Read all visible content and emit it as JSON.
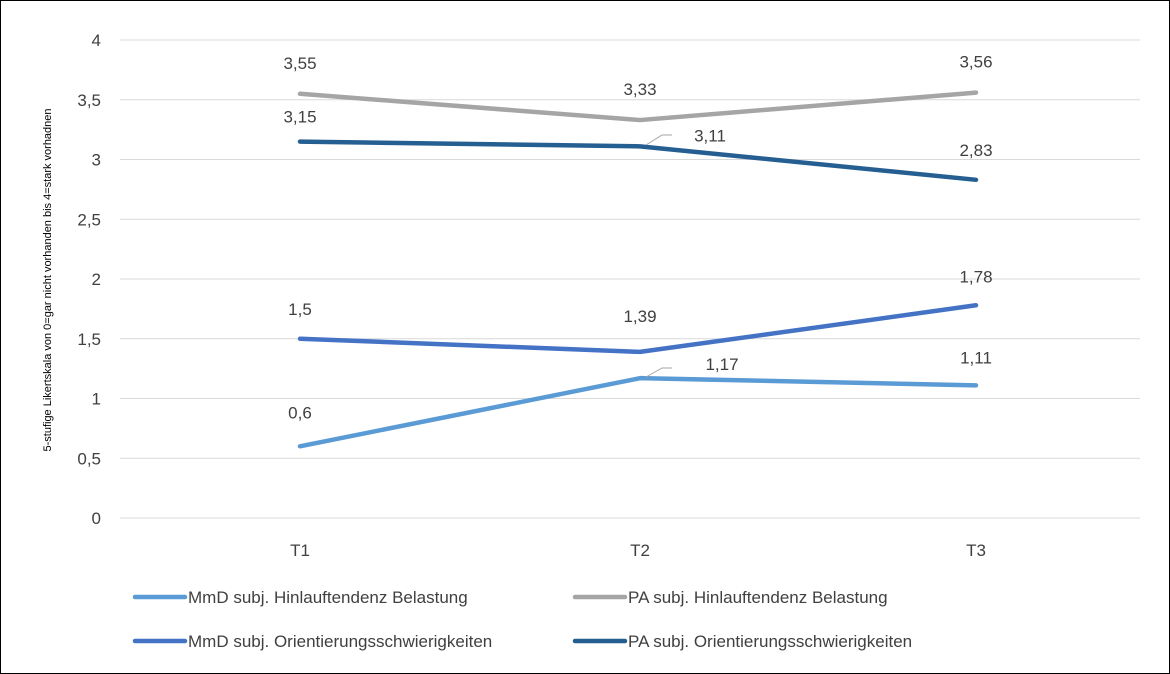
{
  "chart_data": {
    "type": "line",
    "title": "",
    "xlabel": "",
    "ylabel": "5-stufige Likertskala von 0=gar nicht vorhanden bis 4=stark vorhadnen",
    "categories": [
      "T1",
      "T2",
      "T3"
    ],
    "ylim": [
      0,
      4
    ],
    "yticks": [
      "0",
      "0,5",
      "1",
      "1,5",
      "2",
      "2,5",
      "3",
      "3,5",
      "4"
    ],
    "grid": true,
    "legend_position": "bottom",
    "series": [
      {
        "name": "MmD subj. Hinlauftendenz Belastung",
        "values": [
          0.6,
          1.17,
          1.11
        ],
        "labels": [
          "0,6",
          "1,17",
          "1,11"
        ],
        "color": "#5B9BD5"
      },
      {
        "name": "PA subj. Hinlauftendenz Belastung",
        "values": [
          3.55,
          3.33,
          3.56
        ],
        "labels": [
          "3,55",
          "3,33",
          "3,56"
        ],
        "color": "#A5A5A5"
      },
      {
        "name": "MmD subj. Orientierungsschwierigkeiten",
        "values": [
          1.5,
          1.39,
          1.78
        ],
        "labels": [
          "1,5",
          "1,39",
          "1,78"
        ],
        "color": "#4472C4"
      },
      {
        "name": "PA subj. Orientierungsschwierigkeiten",
        "values": [
          3.15,
          3.11,
          2.83
        ],
        "labels": [
          "3,15",
          "3,11",
          "2,83"
        ],
        "color": "#255E91"
      }
    ]
  }
}
